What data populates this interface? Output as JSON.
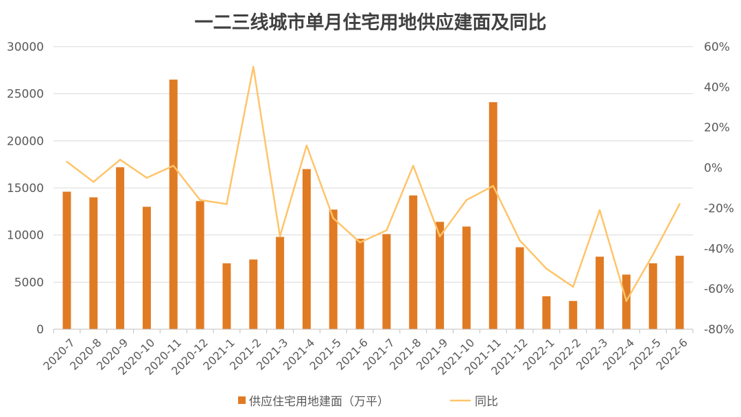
{
  "chart_data": {
    "type": "bar+line",
    "title": "一二三线城市单月住宅用地供应建面及同比",
    "categories": [
      "2020-7",
      "2020-8",
      "2020-9",
      "2020-10",
      "2020-11",
      "2020-12",
      "2021-1",
      "2021-2",
      "2021-3",
      "2021-4",
      "2021-5",
      "2021-6",
      "2021-7",
      "2021-8",
      "2021-9",
      "2021-10",
      "2021-11",
      "2021-12",
      "2022-1",
      "2022-2",
      "2022-3",
      "2022-4",
      "2022-5",
      "2022-6"
    ],
    "series": [
      {
        "name": "供应住宅用地建面（万平）",
        "type": "bar",
        "axis": "left",
        "color": "#E07B24",
        "values": [
          14600,
          14000,
          17200,
          13000,
          26500,
          13600,
          7000,
          7400,
          9800,
          17000,
          12700,
          9600,
          10100,
          14200,
          11400,
          10900,
          24100,
          8700,
          3500,
          3000,
          7700,
          5800,
          7000,
          7800
        ]
      },
      {
        "name": "同比",
        "type": "line",
        "axis": "right",
        "color": "#FFC469",
        "values": [
          3,
          -7,
          4,
          -5,
          1,
          -16,
          -18,
          50,
          -34,
          11,
          -25,
          -37,
          -31,
          1,
          -34,
          -16,
          -9,
          -36,
          -50,
          -59,
          -21,
          -66,
          -43,
          -18
        ]
      }
    ],
    "y_left": {
      "range": [
        0,
        30000
      ],
      "ticks": [
        0,
        5000,
        10000,
        15000,
        20000,
        25000,
        30000
      ],
      "tick_labels": [
        "0",
        "5000",
        "10000",
        "15000",
        "20000",
        "25000",
        "30000"
      ]
    },
    "y_right": {
      "range": [
        -80,
        60
      ],
      "ticks": [
        -80,
        -60,
        -40,
        -20,
        0,
        20,
        40,
        60
      ],
      "tick_labels": [
        "-80%",
        "-60%",
        "-40%",
        "-20%",
        "0%",
        "20%",
        "40%",
        "60%"
      ]
    },
    "xlabel": "",
    "ylabel": "",
    "grid": true,
    "legend": "bottom-center"
  }
}
